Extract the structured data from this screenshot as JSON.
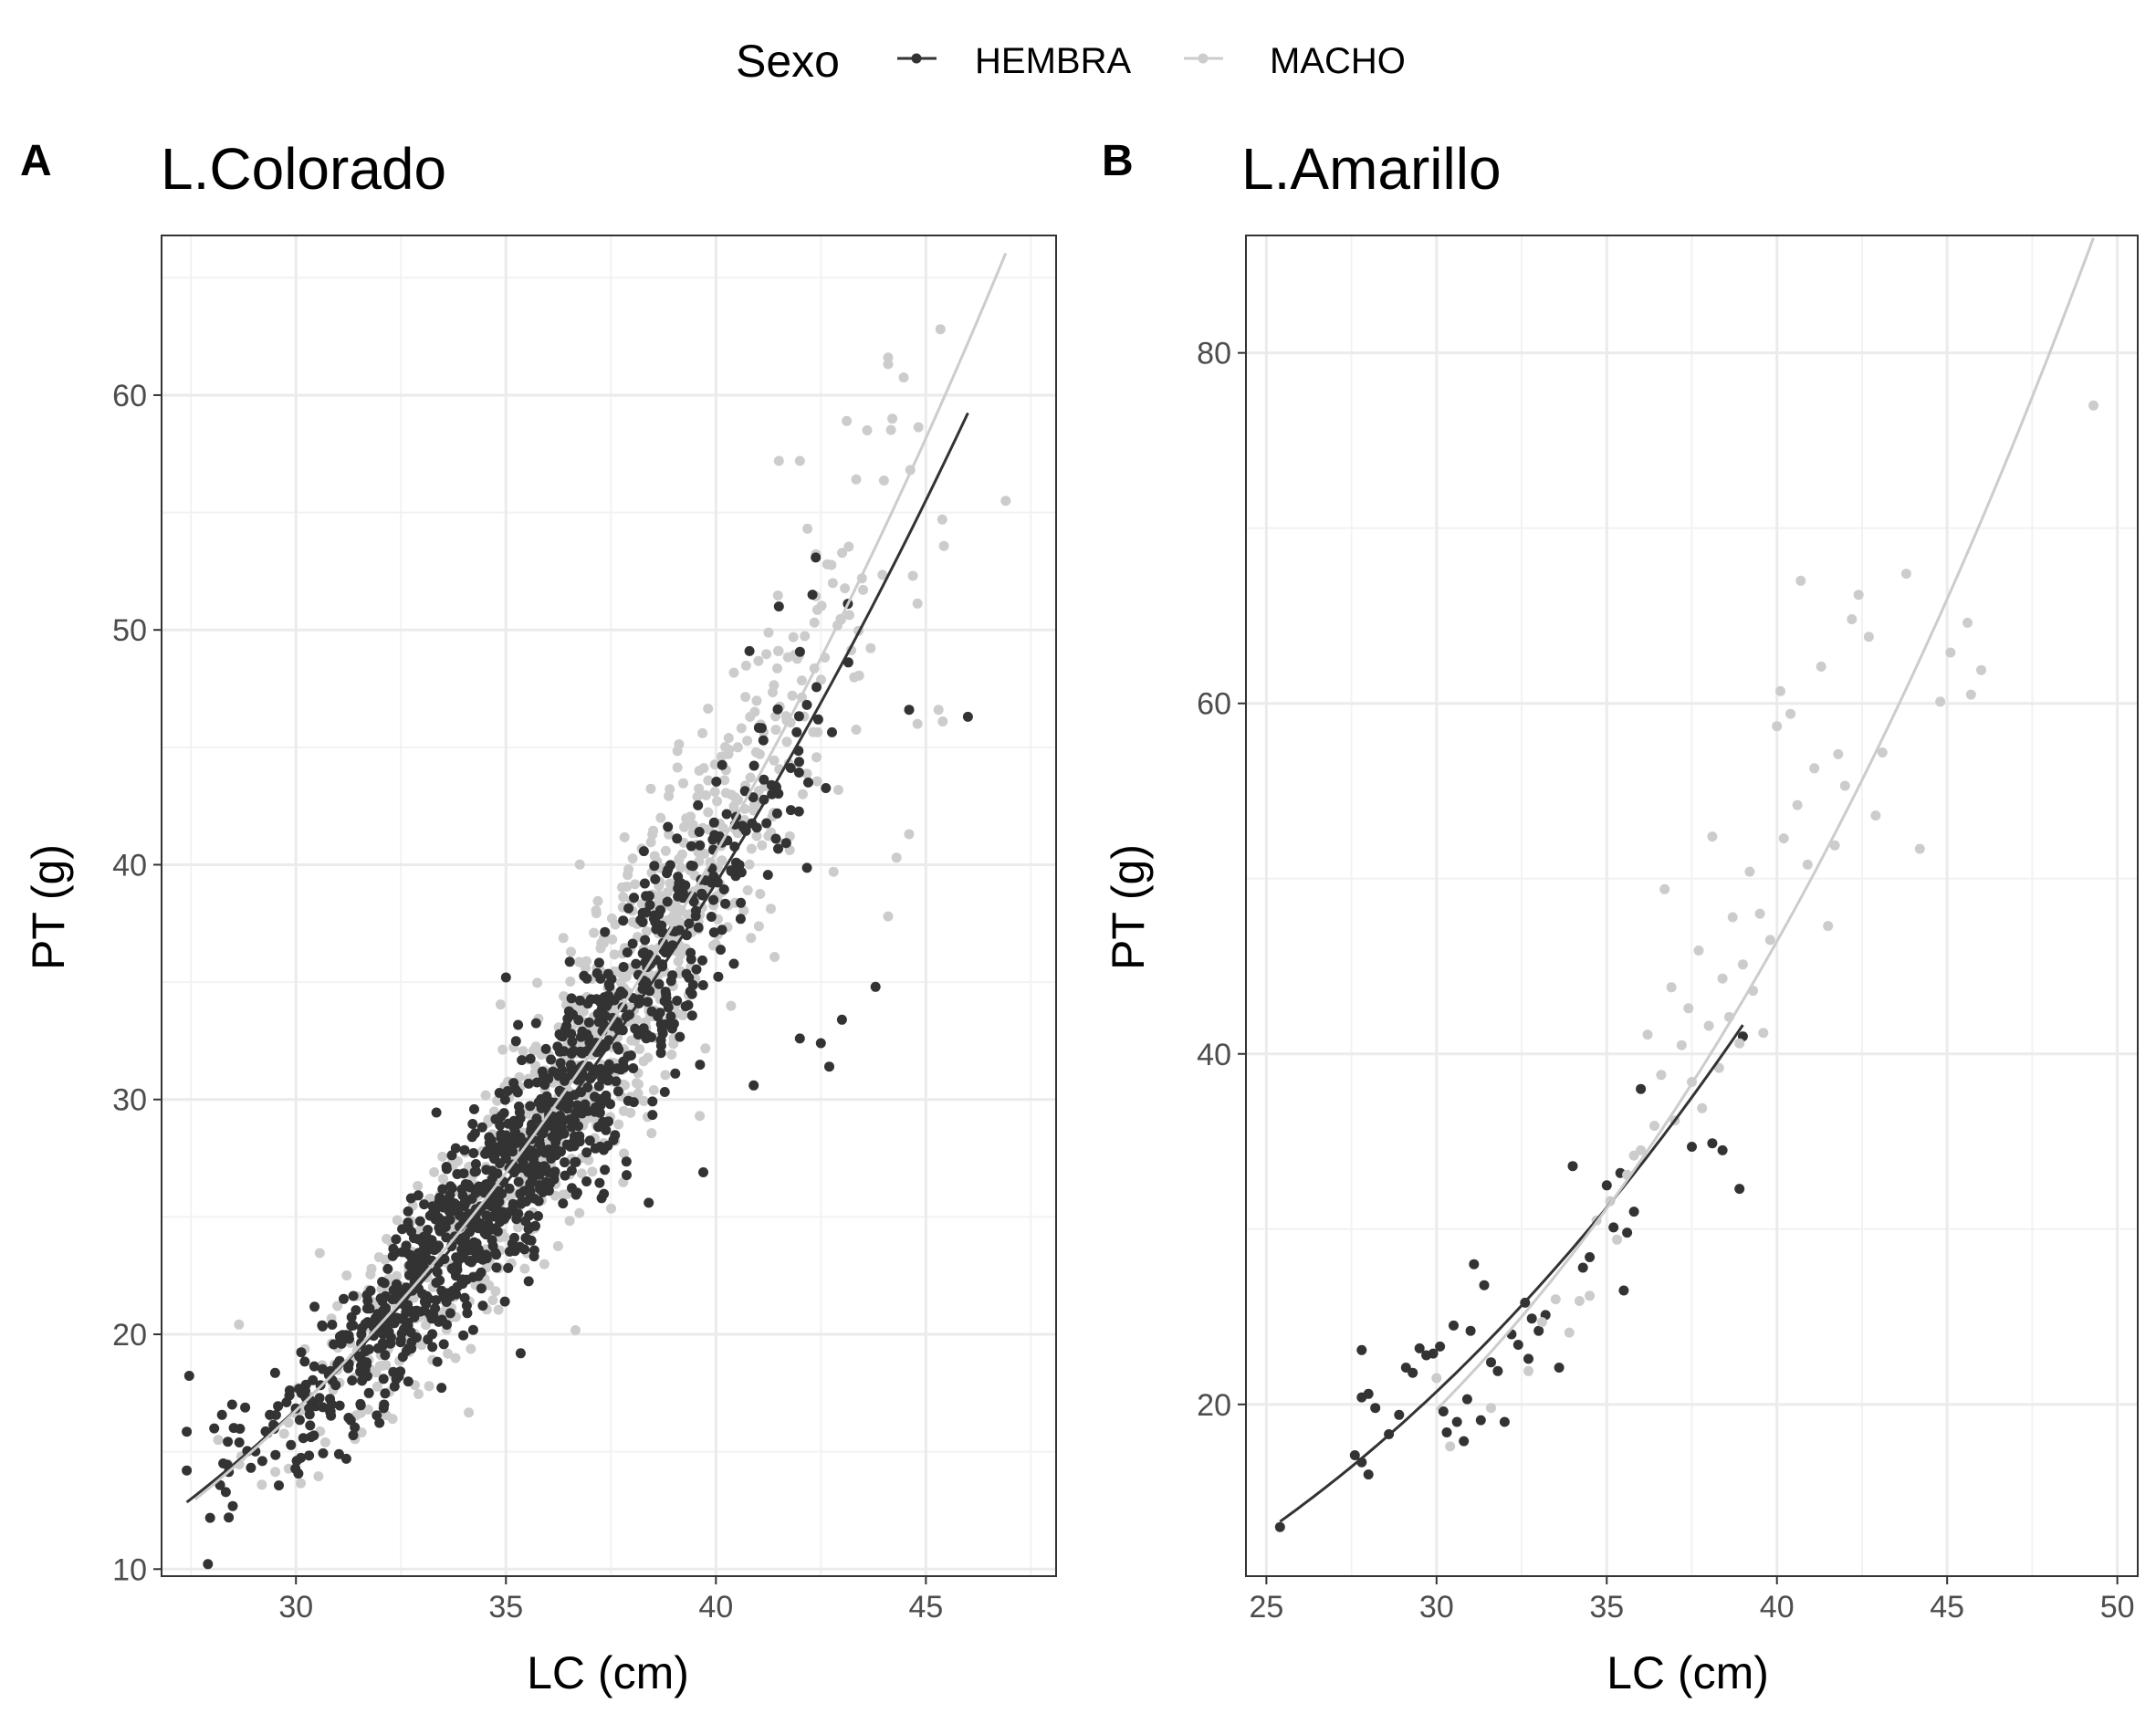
{
  "legend": {
    "title": "Sexo",
    "entries": [
      {
        "label": "HEMBRA",
        "color": "#333333"
      },
      {
        "label": "MACHO",
        "color": "#cccccc"
      }
    ],
    "position": "top"
  },
  "chart_data": [
    {
      "type": "scatter",
      "tag": "A",
      "title": "L.Colorado",
      "xlabel": "LC (cm)",
      "ylabel": "PT (g)",
      "xlim": [
        26.8,
        48.1
      ],
      "ylim": [
        9.7,
        66.8
      ],
      "xticks": [
        30,
        35,
        40,
        45
      ],
      "yticks": [
        10,
        20,
        30,
        40,
        50,
        60
      ],
      "grid": true,
      "series": [
        {
          "name": "HEMBRA",
          "color": "#333333",
          "fit": {
            "a": 0.000737,
            "b": 2.95,
            "x_range": [
              27.4,
              46.0
            ]
          },
          "point_cloud": {
            "n": 1100,
            "x_range": [
              27.4,
              46.0
            ],
            "x_peak": 34.5,
            "y_sd": 2.3
          },
          "points": [
            {
              "x": 27.4,
              "y": 14.2
            },
            {
              "x": 28.4,
              "y": 12.2
            },
            {
              "x": 29.2,
              "y": 14.6
            },
            {
              "x": 31.2,
              "y": 14.7
            },
            {
              "x": 39.7,
              "y": 26.9
            },
            {
              "x": 40.9,
              "y": 30.6
            },
            {
              "x": 42.0,
              "y": 32.6
            },
            {
              "x": 42.5,
              "y": 32.4
            },
            {
              "x": 42.7,
              "y": 31.4
            },
            {
              "x": 43.0,
              "y": 33.4
            },
            {
              "x": 43.8,
              "y": 34.8
            },
            {
              "x": 44.6,
              "y": 46.6
            },
            {
              "x": 46.0,
              "y": 46.3
            },
            {
              "x": 42.3,
              "y": 51.5
            },
            {
              "x": 41.5,
              "y": 51.0
            },
            {
              "x": 40.8,
              "y": 49.1
            },
            {
              "x": 42.2,
              "y": 43.5
            },
            {
              "x": 35.0,
              "y": 35.2
            },
            {
              "x": 38.4,
              "y": 25.6
            }
          ]
        },
        {
          "name": "MACHO",
          "color": "#cccccc",
          "fit": {
            "a": 0.000489,
            "b": 3.07,
            "x_range": [
              27.6,
              46.9
            ]
          },
          "point_cloud": {
            "n": 950,
            "x_range": [
              28.0,
              46.9
            ],
            "x_peak": 36.5,
            "y_sd": 2.8
          },
          "points": [
            {
              "x": 44.1,
              "y": 61.6
            },
            {
              "x": 46.9,
              "y": 55.5
            },
            {
              "x": 44.2,
              "y": 59.0
            },
            {
              "x": 43.6,
              "y": 58.5
            },
            {
              "x": 41.5,
              "y": 57.2
            },
            {
              "x": 42.0,
              "y": 57.2
            },
            {
              "x": 44.1,
              "y": 37.8
            },
            {
              "x": 44.3,
              "y": 40.3
            },
            {
              "x": 44.6,
              "y": 41.3
            },
            {
              "x": 44.8,
              "y": 46.0
            },
            {
              "x": 45.3,
              "y": 46.6
            },
            {
              "x": 45.4,
              "y": 46.1
            },
            {
              "x": 28.7,
              "y": 14.8
            },
            {
              "x": 30.7,
              "y": 15.4
            },
            {
              "x": 32.3,
              "y": 16.4
            },
            {
              "x": 42.8,
              "y": 39.7
            }
          ]
        }
      ]
    },
    {
      "type": "scatter",
      "tag": "B",
      "title": "L.Amarillo",
      "xlabel": "LC (cm)",
      "ylabel": "PT (g)",
      "xlim": [
        24.4,
        50.6
      ],
      "ylim": [
        10.2,
        86.7
      ],
      "xticks": [
        25,
        30,
        35,
        40,
        45,
        50
      ],
      "yticks": [
        20,
        40,
        60,
        80
      ],
      "grid": true,
      "series": [
        {
          "name": "HEMBRA",
          "color": "#333333",
          "fit": {
            "a": 0.00244,
            "b": 2.66,
            "x_range": [
              25.4,
              39.0
            ]
          },
          "points": [
            {
              "x": 25.4,
              "y": 13.0
            },
            {
              "x": 27.6,
              "y": 17.1
            },
            {
              "x": 27.8,
              "y": 16.7
            },
            {
              "x": 28.0,
              "y": 16.0
            },
            {
              "x": 27.8,
              "y": 20.4
            },
            {
              "x": 28.0,
              "y": 20.6
            },
            {
              "x": 27.8,
              "y": 23.1
            },
            {
              "x": 28.2,
              "y": 19.8
            },
            {
              "x": 28.6,
              "y": 18.3
            },
            {
              "x": 28.9,
              "y": 19.4
            },
            {
              "x": 29.1,
              "y": 22.1
            },
            {
              "x": 29.3,
              "y": 21.8
            },
            {
              "x": 29.5,
              "y": 23.2
            },
            {
              "x": 29.7,
              "y": 22.8
            },
            {
              "x": 29.9,
              "y": 22.9
            },
            {
              "x": 30.1,
              "y": 23.3
            },
            {
              "x": 30.2,
              "y": 19.6
            },
            {
              "x": 30.3,
              "y": 18.4
            },
            {
              "x": 30.5,
              "y": 24.5
            },
            {
              "x": 30.6,
              "y": 19.0
            },
            {
              "x": 30.8,
              "y": 17.9
            },
            {
              "x": 30.9,
              "y": 20.3
            },
            {
              "x": 31.0,
              "y": 24.2
            },
            {
              "x": 31.1,
              "y": 28.0
            },
            {
              "x": 31.3,
              "y": 19.1
            },
            {
              "x": 31.4,
              "y": 26.8
            },
            {
              "x": 31.6,
              "y": 22.4
            },
            {
              "x": 31.8,
              "y": 21.9
            },
            {
              "x": 32.0,
              "y": 19.0
            },
            {
              "x": 32.2,
              "y": 24.0
            },
            {
              "x": 32.4,
              "y": 23.4
            },
            {
              "x": 32.6,
              "y": 25.8
            },
            {
              "x": 32.7,
              "y": 22.6
            },
            {
              "x": 32.8,
              "y": 24.9
            },
            {
              "x": 33.0,
              "y": 24.2
            },
            {
              "x": 33.2,
              "y": 25.1
            },
            {
              "x": 33.6,
              "y": 22.1
            },
            {
              "x": 34.0,
              "y": 33.6
            },
            {
              "x": 34.3,
              "y": 27.8
            },
            {
              "x": 34.5,
              "y": 28.4
            },
            {
              "x": 35.0,
              "y": 32.5
            },
            {
              "x": 35.2,
              "y": 30.1
            },
            {
              "x": 35.4,
              "y": 33.2
            },
            {
              "x": 35.5,
              "y": 26.5
            },
            {
              "x": 35.6,
              "y": 29.8
            },
            {
              "x": 35.8,
              "y": 31.0
            },
            {
              "x": 36.0,
              "y": 38.0
            },
            {
              "x": 37.5,
              "y": 34.7
            },
            {
              "x": 38.1,
              "y": 34.9
            },
            {
              "x": 38.4,
              "y": 34.5
            },
            {
              "x": 38.9,
              "y": 32.3
            },
            {
              "x": 39.0,
              "y": 41.0
            }
          ]
        },
        {
          "name": "MACHO",
          "color": "#cccccc",
          "fit": {
            "a": 0.000781,
            "b": 2.98,
            "x_range": [
              30.0,
              49.3
            ]
          },
          "points": [
            {
              "x": 30.0,
              "y": 21.5
            },
            {
              "x": 30.4,
              "y": 17.6
            },
            {
              "x": 31.6,
              "y": 19.8
            },
            {
              "x": 32.7,
              "y": 21.9
            },
            {
              "x": 33.1,
              "y": 24.7
            },
            {
              "x": 33.5,
              "y": 26.0
            },
            {
              "x": 33.9,
              "y": 24.1
            },
            {
              "x": 34.2,
              "y": 25.9
            },
            {
              "x": 34.5,
              "y": 26.2
            },
            {
              "x": 34.7,
              "y": 30.5
            },
            {
              "x": 35.1,
              "y": 31.6
            },
            {
              "x": 35.3,
              "y": 29.4
            },
            {
              "x": 35.6,
              "y": 33.1
            },
            {
              "x": 35.8,
              "y": 34.2
            },
            {
              "x": 36.0,
              "y": 34.5
            },
            {
              "x": 36.2,
              "y": 41.1
            },
            {
              "x": 36.4,
              "y": 35.9
            },
            {
              "x": 36.6,
              "y": 38.8
            },
            {
              "x": 36.7,
              "y": 49.4
            },
            {
              "x": 36.9,
              "y": 43.8
            },
            {
              "x": 37.0,
              "y": 36.2
            },
            {
              "x": 37.2,
              "y": 40.5
            },
            {
              "x": 37.4,
              "y": 42.6
            },
            {
              "x": 37.5,
              "y": 38.4
            },
            {
              "x": 37.7,
              "y": 45.9
            },
            {
              "x": 37.8,
              "y": 36.9
            },
            {
              "x": 38.0,
              "y": 41.6
            },
            {
              "x": 38.1,
              "y": 52.4
            },
            {
              "x": 38.3,
              "y": 39.2
            },
            {
              "x": 38.4,
              "y": 44.3
            },
            {
              "x": 38.6,
              "y": 42.1
            },
            {
              "x": 38.7,
              "y": 47.8
            },
            {
              "x": 38.9,
              "y": 40.6
            },
            {
              "x": 39.0,
              "y": 45.1
            },
            {
              "x": 39.2,
              "y": 50.4
            },
            {
              "x": 39.3,
              "y": 43.6
            },
            {
              "x": 39.5,
              "y": 48.0
            },
            {
              "x": 39.6,
              "y": 41.2
            },
            {
              "x": 39.8,
              "y": 46.5
            },
            {
              "x": 40.0,
              "y": 58.7
            },
            {
              "x": 40.1,
              "y": 60.7
            },
            {
              "x": 40.2,
              "y": 52.3
            },
            {
              "x": 40.4,
              "y": 59.4
            },
            {
              "x": 40.6,
              "y": 54.2
            },
            {
              "x": 40.7,
              "y": 67.0
            },
            {
              "x": 40.9,
              "y": 50.8
            },
            {
              "x": 41.1,
              "y": 56.3
            },
            {
              "x": 41.3,
              "y": 62.1
            },
            {
              "x": 41.5,
              "y": 47.3
            },
            {
              "x": 41.7,
              "y": 51.9
            },
            {
              "x": 41.8,
              "y": 57.1
            },
            {
              "x": 42.0,
              "y": 55.3
            },
            {
              "x": 42.2,
              "y": 64.8
            },
            {
              "x": 42.4,
              "y": 66.2
            },
            {
              "x": 42.7,
              "y": 63.8
            },
            {
              "x": 42.9,
              "y": 53.6
            },
            {
              "x": 43.1,
              "y": 57.2
            },
            {
              "x": 43.8,
              "y": 67.4
            },
            {
              "x": 44.2,
              "y": 51.7
            },
            {
              "x": 44.8,
              "y": 60.1
            },
            {
              "x": 45.1,
              "y": 62.9
            },
            {
              "x": 45.6,
              "y": 64.6
            },
            {
              "x": 45.7,
              "y": 60.5
            },
            {
              "x": 46.0,
              "y": 61.9
            },
            {
              "x": 49.3,
              "y": 77.0
            }
          ]
        }
      ]
    }
  ]
}
